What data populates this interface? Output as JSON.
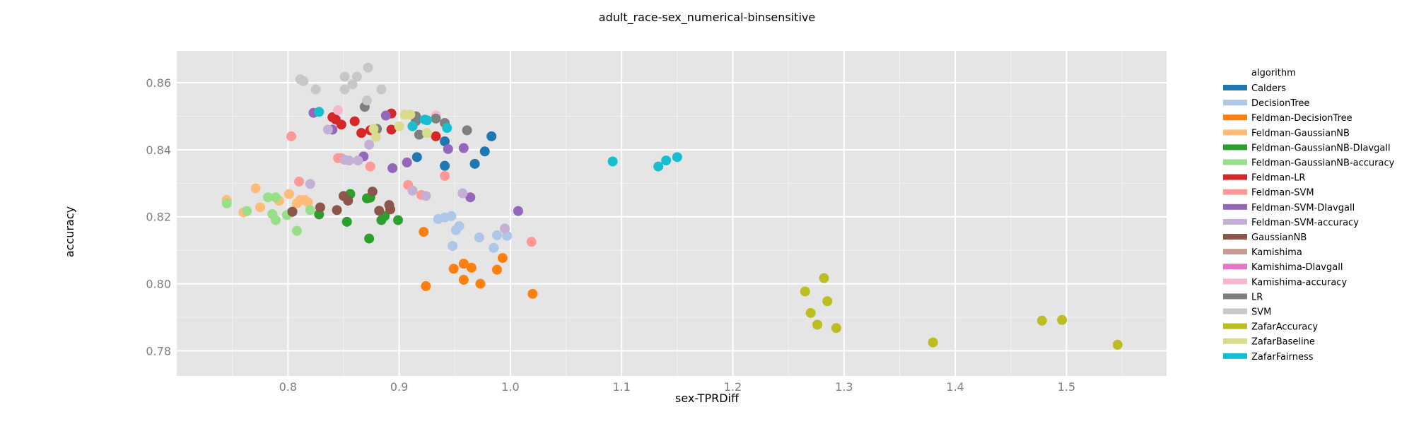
{
  "chart_data": {
    "type": "scatter",
    "title": "adult_race-sex_numerical-binsensitive",
    "xlabel": "sex-TPRDiff",
    "ylabel": "accuracy",
    "xlim": [
      0.7,
      1.59
    ],
    "ylim": [
      0.7725,
      0.8695
    ],
    "xticks": [
      0.8,
      0.9,
      1.0,
      1.1,
      1.2,
      1.3,
      1.4,
      1.5
    ],
    "xtick_labels": [
      "0.8",
      "0.9",
      "1.0",
      "1.1",
      "1.2",
      "1.3",
      "1.4",
      "1.5"
    ],
    "yticks": [
      0.78,
      0.8,
      0.82,
      0.84,
      0.86
    ],
    "ytick_labels": [
      "0.78",
      "0.80",
      "0.82",
      "0.84",
      "0.86"
    ],
    "grid": true,
    "legend": {
      "title": "algorithm",
      "placement": "right"
    },
    "series": [
      {
        "name": "Calders",
        "color": "#1f77b4",
        "points": [
          [
            0.916,
            0.8378
          ],
          [
            0.941,
            0.8352
          ],
          [
            0.941,
            0.8425
          ],
          [
            0.968,
            0.8358
          ],
          [
            0.977,
            0.8395
          ],
          [
            0.983,
            0.844
          ]
        ]
      },
      {
        "name": "DecisionTree",
        "color": "#aec7e8",
        "points": [
          [
            0.935,
            0.8193
          ],
          [
            0.941,
            0.8198
          ],
          [
            0.947,
            0.8202
          ],
          [
            0.948,
            0.8113
          ],
          [
            0.951,
            0.816
          ],
          [
            0.954,
            0.8172
          ],
          [
            0.972,
            0.8138
          ],
          [
            0.985,
            0.8107
          ],
          [
            0.988,
            0.8145
          ],
          [
            0.997,
            0.8143
          ]
        ]
      },
      {
        "name": "Feldman-DecisionTree",
        "color": "#ff7f0e",
        "points": [
          [
            0.922,
            0.8155
          ],
          [
            0.924,
            0.7993
          ],
          [
            0.949,
            0.8045
          ],
          [
            0.958,
            0.806
          ],
          [
            0.958,
            0.8012
          ],
          [
            0.965,
            0.8048
          ],
          [
            0.973,
            0.8
          ],
          [
            0.988,
            0.8042
          ],
          [
            0.993,
            0.8077
          ],
          [
            1.02,
            0.797
          ]
        ]
      },
      {
        "name": "Feldman-GaussianNB",
        "color": "#ffbb78",
        "points": [
          [
            0.745,
            0.825
          ],
          [
            0.76,
            0.8213
          ],
          [
            0.771,
            0.8285
          ],
          [
            0.775,
            0.8228
          ],
          [
            0.792,
            0.8248
          ],
          [
            0.801,
            0.8268
          ],
          [
            0.808,
            0.824
          ],
          [
            0.811,
            0.825
          ],
          [
            0.815,
            0.825
          ],
          [
            0.818,
            0.8243
          ]
        ]
      },
      {
        "name": "Feldman-GaussianNB-DIavgall",
        "color": "#2ca02c",
        "points": [
          [
            0.828,
            0.8207
          ],
          [
            0.853,
            0.8185
          ],
          [
            0.856,
            0.8268
          ],
          [
            0.871,
            0.8255
          ],
          [
            0.874,
            0.8257
          ],
          [
            0.873,
            0.8135
          ],
          [
            0.884,
            0.819
          ],
          [
            0.887,
            0.8202
          ],
          [
            0.899,
            0.819
          ]
        ]
      },
      {
        "name": "Feldman-GaussianNB-accuracy",
        "color": "#98df8a",
        "points": [
          [
            0.745,
            0.824
          ],
          [
            0.763,
            0.8217
          ],
          [
            0.782,
            0.8258
          ],
          [
            0.786,
            0.8208
          ],
          [
            0.789,
            0.8258
          ],
          [
            0.789,
            0.819
          ],
          [
            0.799,
            0.8205
          ],
          [
            0.803,
            0.8213
          ],
          [
            0.808,
            0.8158
          ],
          [
            0.82,
            0.822
          ]
        ]
      },
      {
        "name": "Feldman-LR",
        "color": "#d62728",
        "points": [
          [
            0.84,
            0.8497
          ],
          [
            0.843,
            0.849
          ],
          [
            0.848,
            0.8475
          ],
          [
            0.86,
            0.8485
          ],
          [
            0.866,
            0.845
          ],
          [
            0.874,
            0.8458
          ],
          [
            0.893,
            0.846
          ],
          [
            0.893,
            0.8508
          ],
          [
            0.933,
            0.844
          ]
        ]
      },
      {
        "name": "Feldman-SVM",
        "color": "#ff9896",
        "points": [
          [
            0.803,
            0.844
          ],
          [
            0.81,
            0.8305
          ],
          [
            0.845,
            0.8375
          ],
          [
            0.848,
            0.8375
          ],
          [
            0.874,
            0.835
          ],
          [
            0.908,
            0.8295
          ],
          [
            0.92,
            0.8265
          ],
          [
            0.941,
            0.8322
          ],
          [
            1.019,
            0.8125
          ]
        ]
      },
      {
        "name": "Feldman-SVM-DIavgall",
        "color": "#9467bd",
        "points": [
          [
            0.823,
            0.851
          ],
          [
            0.84,
            0.846
          ],
          [
            0.868,
            0.838
          ],
          [
            0.888,
            0.8502
          ],
          [
            0.894,
            0.8345
          ],
          [
            0.907,
            0.8362
          ],
          [
            0.944,
            0.8402
          ],
          [
            0.958,
            0.8405
          ],
          [
            0.964,
            0.8258
          ],
          [
            1.007,
            0.8217
          ]
        ]
      },
      {
        "name": "Feldman-SVM-accuracy",
        "color": "#c5b0d5",
        "points": [
          [
            0.82,
            0.8298
          ],
          [
            0.836,
            0.846
          ],
          [
            0.851,
            0.837
          ],
          [
            0.855,
            0.8368
          ],
          [
            0.863,
            0.8368
          ],
          [
            0.873,
            0.8415
          ],
          [
            0.912,
            0.8278
          ],
          [
            0.924,
            0.8262
          ],
          [
            0.957,
            0.827
          ],
          [
            0.995,
            0.8165
          ]
        ]
      },
      {
        "name": "GaussianNB",
        "color": "#8c564b",
        "points": [
          [
            0.804,
            0.8215
          ],
          [
            0.829,
            0.8228
          ],
          [
            0.844,
            0.822
          ],
          [
            0.85,
            0.8262
          ],
          [
            0.854,
            0.8248
          ],
          [
            0.876,
            0.8275
          ],
          [
            0.882,
            0.8218
          ],
          [
            0.891,
            0.8235
          ],
          [
            0.892,
            0.8222
          ]
        ]
      },
      {
        "name": "Kamishima",
        "color": "#c49c94",
        "points": []
      },
      {
        "name": "Kamishima-DIavgall",
        "color": "#e377c2",
        "points": []
      },
      {
        "name": "Kamishima-accuracy",
        "color": "#f7b6d2",
        "points": [
          [
            0.845,
            0.8518
          ],
          [
            0.933,
            0.8502
          ],
          [
            0.88,
            0.846
          ]
        ]
      },
      {
        "name": "LR",
        "color": "#7f7f7f",
        "points": [
          [
            0.869,
            0.8528
          ],
          [
            0.88,
            0.8462
          ],
          [
            0.915,
            0.85
          ],
          [
            0.915,
            0.8485
          ],
          [
            0.918,
            0.8445
          ],
          [
            0.933,
            0.8493
          ],
          [
            0.941,
            0.848
          ],
          [
            0.961,
            0.8458
          ]
        ]
      },
      {
        "name": "SVM",
        "color": "#c7c7c7",
        "points": [
          [
            0.811,
            0.861
          ],
          [
            0.814,
            0.8605
          ],
          [
            0.825,
            0.858
          ],
          [
            0.851,
            0.8618
          ],
          [
            0.851,
            0.858
          ],
          [
            0.858,
            0.8595
          ],
          [
            0.862,
            0.8618
          ],
          [
            0.871,
            0.8547
          ],
          [
            0.872,
            0.8645
          ],
          [
            0.884,
            0.858
          ]
        ]
      },
      {
        "name": "ZafarAccuracy",
        "color": "#bcbd22",
        "points": [
          [
            1.265,
            0.7977
          ],
          [
            1.27,
            0.7913
          ],
          [
            1.276,
            0.7878
          ],
          [
            1.282,
            0.8017
          ],
          [
            1.285,
            0.7948
          ],
          [
            1.293,
            0.7868
          ],
          [
            1.38,
            0.7825
          ],
          [
            1.478,
            0.789
          ],
          [
            1.496,
            0.7892
          ],
          [
            1.546,
            0.7818
          ]
        ]
      },
      {
        "name": "ZafarBaseline",
        "color": "#dbdb8d",
        "points": [
          [
            0.877,
            0.8462
          ],
          [
            0.879,
            0.8438
          ],
          [
            0.9,
            0.847
          ],
          [
            0.905,
            0.8505
          ],
          [
            0.91,
            0.8505
          ],
          [
            0.925,
            0.845
          ]
        ]
      },
      {
        "name": "ZafarFairness",
        "color": "#17becf",
        "points": [
          [
            0.828,
            0.8513
          ],
          [
            0.912,
            0.847
          ],
          [
            0.923,
            0.849
          ],
          [
            0.925,
            0.8488
          ],
          [
            0.943,
            0.8465
          ],
          [
            1.092,
            0.8365
          ],
          [
            1.133,
            0.835
          ],
          [
            1.14,
            0.8368
          ],
          [
            1.15,
            0.8378
          ]
        ]
      }
    ]
  }
}
